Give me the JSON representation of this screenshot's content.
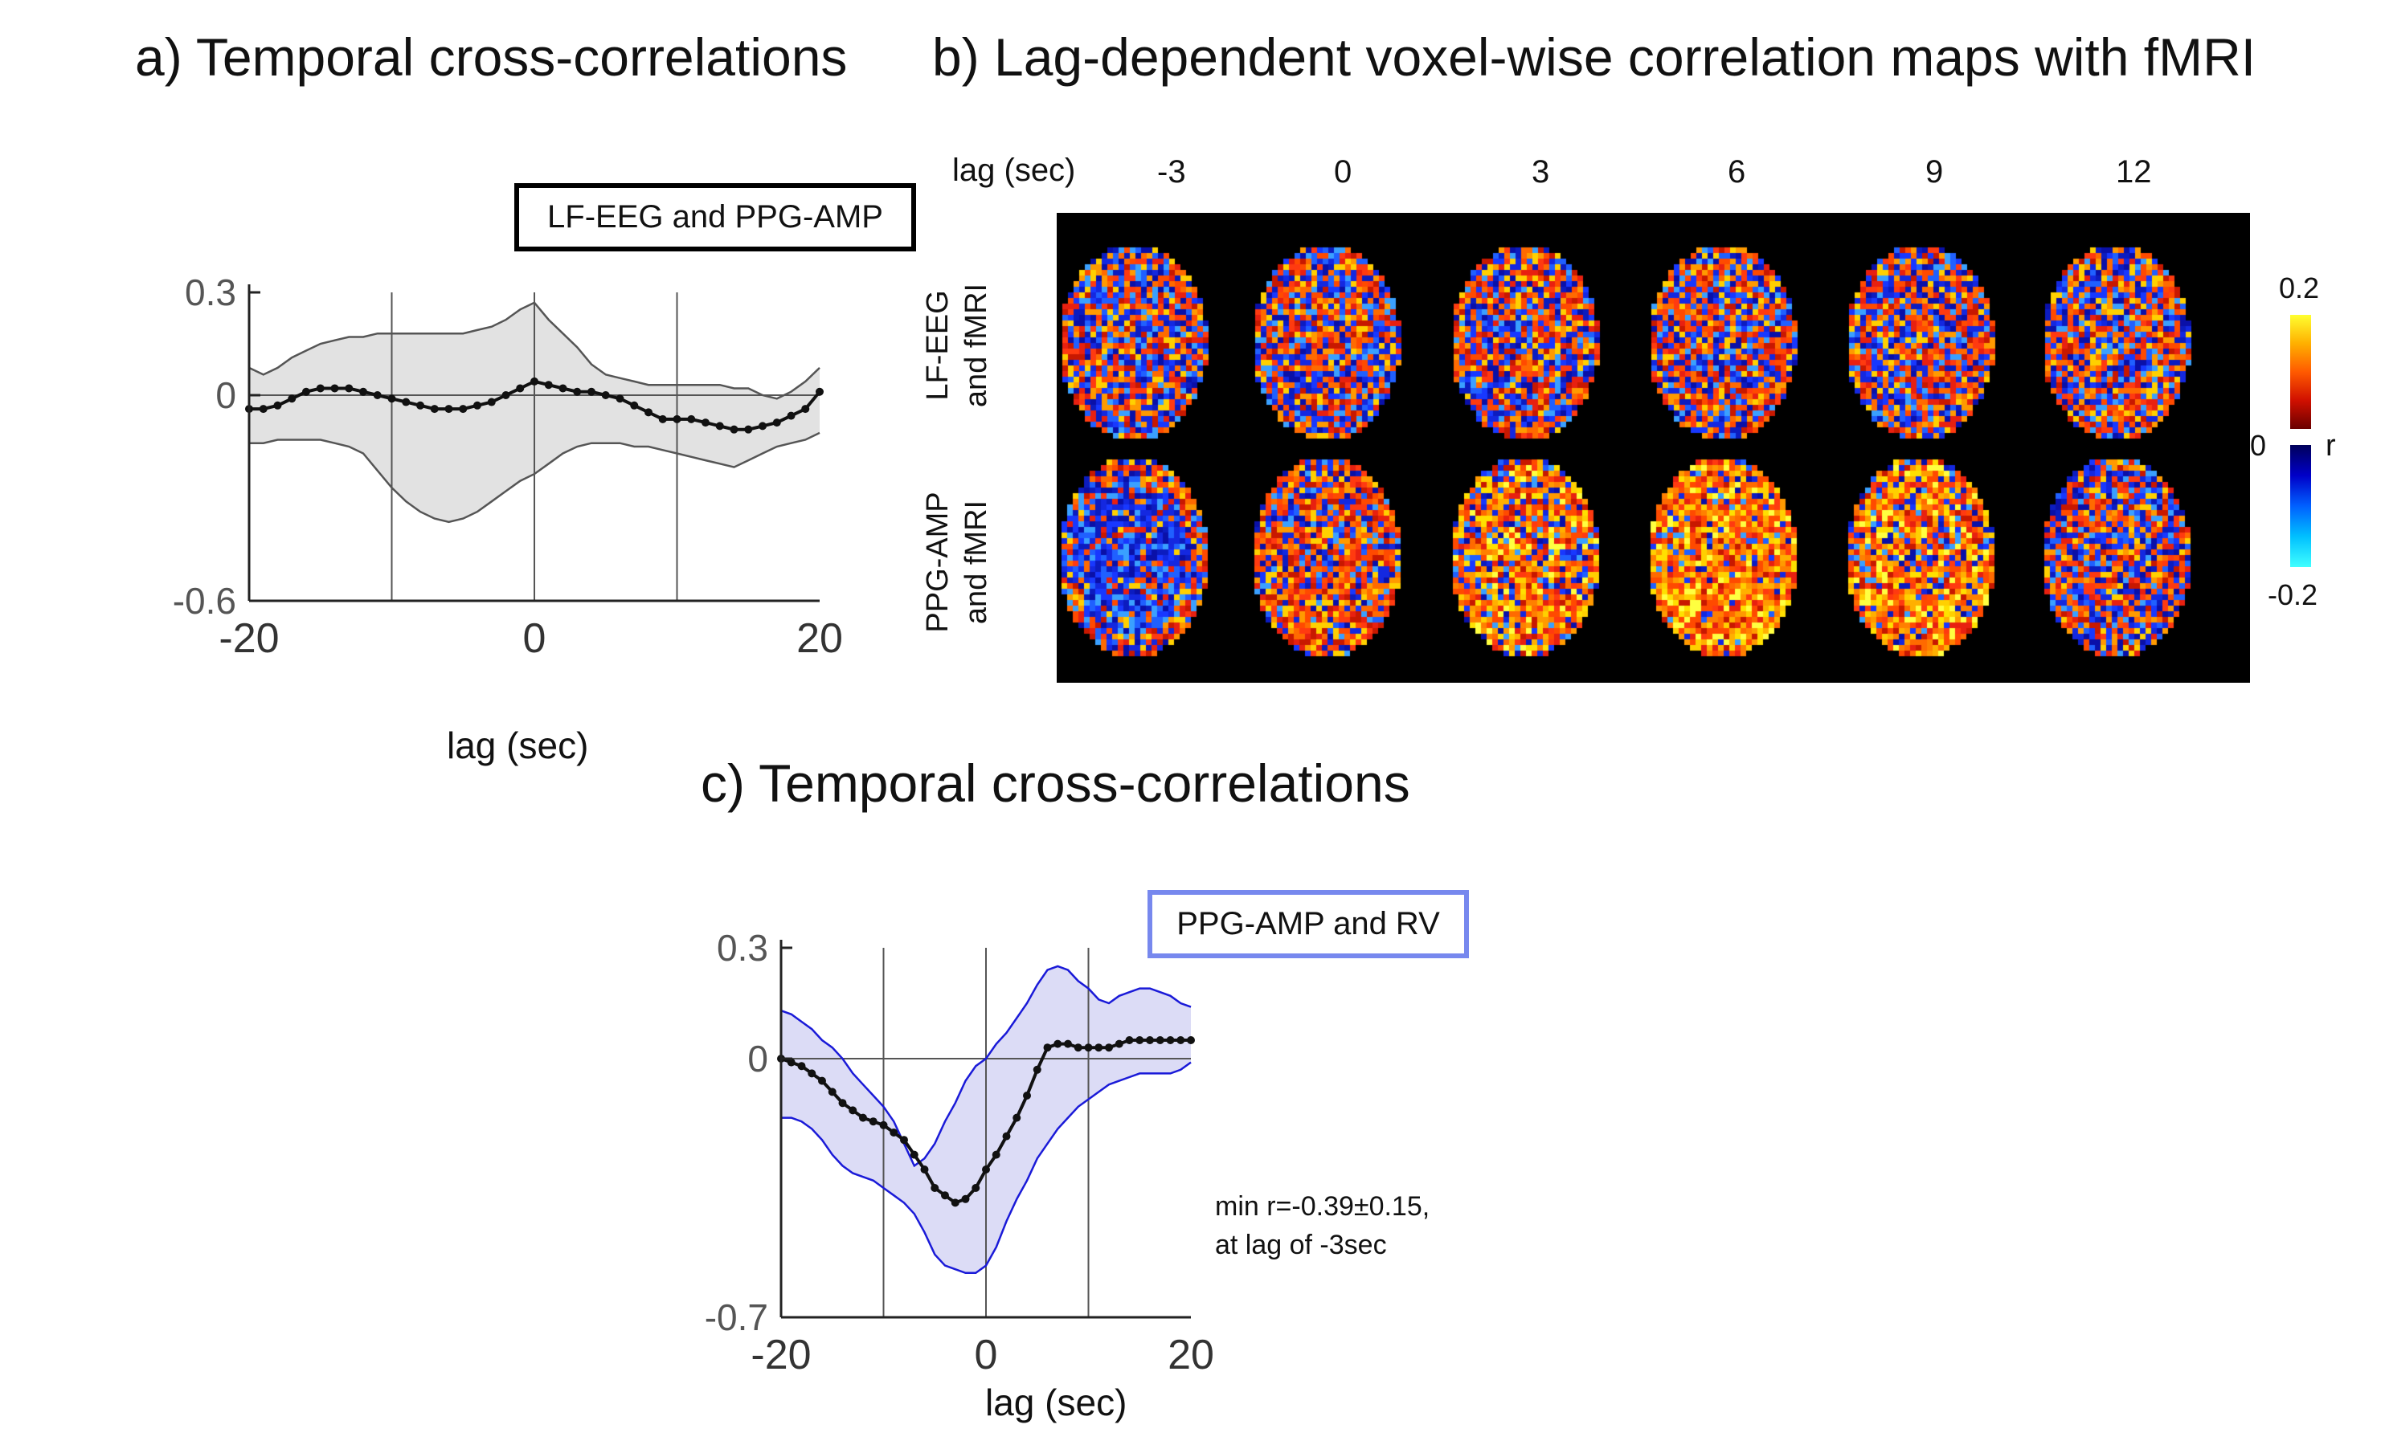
{
  "panel_a": {
    "title": "a) Temporal cross-correlations",
    "legend": "LF-EEG and PPG-AMP",
    "xlabel": "lag (sec)"
  },
  "panel_b": {
    "title": "b) Lag-dependent voxel-wise correlation maps with fMRI",
    "lag_header": "lag (sec)",
    "lags": [
      "-3",
      "0",
      "3",
      "6",
      "9",
      "12"
    ],
    "row_labels": [
      {
        "line1": "LF-EEG",
        "line2": "and fMRI"
      },
      {
        "line1": "PPG-AMP",
        "line2": "and fMRI"
      }
    ],
    "colorbar": {
      "max": "0.2",
      "zero": "0",
      "min": "-0.2",
      "unit": "r"
    },
    "map_polarity": [
      [
        "mixed",
        "mixed",
        "mixed",
        "mixed",
        "mixed",
        "mixed"
      ],
      [
        "negative",
        "mixed-positive",
        "positive",
        "strong-positive",
        "positive",
        "mixed"
      ]
    ],
    "colors": {
      "background": "#000000",
      "positive": "#e8401a",
      "negative": "#1a2ad8"
    }
  },
  "panel_c": {
    "title": "c) Temporal cross-correlations",
    "legend": "PPG-AMP and RV",
    "annotation_line1": "min r=-0.39±0.15,",
    "annotation_line2": "at lag of -3sec",
    "xlabel": "lag (sec)"
  },
  "chart_data": [
    {
      "type": "line",
      "title": "a) Temporal cross-correlations",
      "xlabel": "lag (sec)",
      "ylabel": "",
      "xlim": [
        -20,
        20
      ],
      "ylim": [
        -0.6,
        0.3
      ],
      "xticks": [
        "-20",
        "0",
        "20"
      ],
      "yticks": [
        "0.3",
        "0",
        "-0.6"
      ],
      "vlines": [
        -10,
        0,
        10
      ],
      "hline": 0,
      "grid": false,
      "colors": {
        "mean": "#111111",
        "band_fill": "#e2e2e2",
        "band_edge": "#555555"
      },
      "series": [
        {
          "name": "LF-EEG and PPG-AMP",
          "x": [
            -20,
            -19,
            -18,
            -17,
            -16,
            -15,
            -14,
            -13,
            -12,
            -11,
            -10,
            -9,
            -8,
            -7,
            -6,
            -5,
            -4,
            -3,
            -2,
            -1,
            0,
            1,
            2,
            3,
            4,
            5,
            6,
            7,
            8,
            9,
            10,
            11,
            12,
            13,
            14,
            15,
            16,
            17,
            18,
            19,
            20
          ],
          "mean": [
            -0.04,
            -0.04,
            -0.03,
            -0.01,
            0.01,
            0.02,
            0.02,
            0.02,
            0.01,
            0.0,
            -0.01,
            -0.02,
            -0.03,
            -0.04,
            -0.04,
            -0.04,
            -0.03,
            -0.02,
            0.0,
            0.02,
            0.04,
            0.03,
            0.02,
            0.01,
            0.01,
            0.0,
            -0.01,
            -0.03,
            -0.05,
            -0.07,
            -0.07,
            -0.07,
            -0.08,
            -0.09,
            -0.1,
            -0.1,
            -0.09,
            -0.08,
            -0.06,
            -0.04,
            0.01
          ],
          "upper": [
            0.08,
            0.06,
            0.08,
            0.11,
            0.13,
            0.15,
            0.16,
            0.17,
            0.17,
            0.18,
            0.18,
            0.18,
            0.18,
            0.18,
            0.18,
            0.18,
            0.19,
            0.2,
            0.22,
            0.25,
            0.27,
            0.22,
            0.18,
            0.14,
            0.09,
            0.06,
            0.05,
            0.04,
            0.03,
            0.03,
            0.03,
            0.03,
            0.03,
            0.03,
            0.02,
            0.02,
            0.0,
            -0.01,
            0.01,
            0.04,
            0.08
          ],
          "lower": [
            -0.14,
            -0.14,
            -0.13,
            -0.13,
            -0.13,
            -0.13,
            -0.14,
            -0.15,
            -0.17,
            -0.22,
            -0.27,
            -0.31,
            -0.34,
            -0.36,
            -0.37,
            -0.36,
            -0.34,
            -0.31,
            -0.28,
            -0.25,
            -0.23,
            -0.2,
            -0.17,
            -0.15,
            -0.14,
            -0.14,
            -0.14,
            -0.15,
            -0.15,
            -0.16,
            -0.17,
            -0.18,
            -0.19,
            -0.2,
            -0.21,
            -0.19,
            -0.17,
            -0.15,
            -0.14,
            -0.13,
            -0.11
          ]
        }
      ]
    },
    {
      "type": "line",
      "title": "c) Temporal cross-correlations",
      "xlabel": "lag (sec)",
      "ylabel": "",
      "xlim": [
        -20,
        20
      ],
      "ylim": [
        -0.7,
        0.3
      ],
      "xticks": [
        "-20",
        "0",
        "20"
      ],
      "yticks": [
        "0.3",
        "0",
        "-0.7"
      ],
      "vlines": [
        -10,
        0,
        10
      ],
      "hline": 0,
      "grid": false,
      "colors": {
        "mean": "#111111",
        "band_fill": "#dcdcf6",
        "band_edge": "#1a1ad8"
      },
      "series": [
        {
          "name": "PPG-AMP and RV",
          "x": [
            -20,
            -19,
            -18,
            -17,
            -16,
            -15,
            -14,
            -13,
            -12,
            -11,
            -10,
            -9,
            -8,
            -7,
            -6,
            -5,
            -4,
            -3,
            -2,
            -1,
            0,
            1,
            2,
            3,
            4,
            5,
            6,
            7,
            8,
            9,
            10,
            11,
            12,
            13,
            14,
            15,
            16,
            17,
            18,
            19,
            20
          ],
          "mean": [
            0.0,
            -0.01,
            -0.02,
            -0.04,
            -0.06,
            -0.09,
            -0.12,
            -0.14,
            -0.16,
            -0.17,
            -0.18,
            -0.2,
            -0.22,
            -0.26,
            -0.3,
            -0.35,
            -0.37,
            -0.39,
            -0.38,
            -0.35,
            -0.3,
            -0.26,
            -0.21,
            -0.16,
            -0.1,
            -0.03,
            0.03,
            0.04,
            0.04,
            0.03,
            0.03,
            0.03,
            0.03,
            0.04,
            0.05,
            0.05,
            0.05,
            0.05,
            0.05,
            0.05,
            0.05
          ],
          "upper": [
            0.13,
            0.12,
            0.1,
            0.08,
            0.05,
            0.03,
            0.0,
            -0.04,
            -0.07,
            -0.1,
            -0.13,
            -0.17,
            -0.23,
            -0.29,
            -0.27,
            -0.23,
            -0.17,
            -0.12,
            -0.06,
            -0.02,
            0.0,
            0.04,
            0.07,
            0.11,
            0.15,
            0.2,
            0.24,
            0.25,
            0.24,
            0.21,
            0.19,
            0.16,
            0.15,
            0.17,
            0.18,
            0.19,
            0.19,
            0.18,
            0.17,
            0.15,
            0.14
          ],
          "lower": [
            -0.16,
            -0.16,
            -0.17,
            -0.19,
            -0.22,
            -0.26,
            -0.29,
            -0.31,
            -0.32,
            -0.33,
            -0.35,
            -0.37,
            -0.39,
            -0.42,
            -0.47,
            -0.53,
            -0.56,
            -0.57,
            -0.58,
            -0.58,
            -0.56,
            -0.51,
            -0.44,
            -0.38,
            -0.33,
            -0.27,
            -0.23,
            -0.19,
            -0.16,
            -0.13,
            -0.11,
            -0.09,
            -0.07,
            -0.06,
            -0.05,
            -0.04,
            -0.04,
            -0.04,
            -0.04,
            -0.03,
            -0.01
          ]
        }
      ]
    }
  ]
}
